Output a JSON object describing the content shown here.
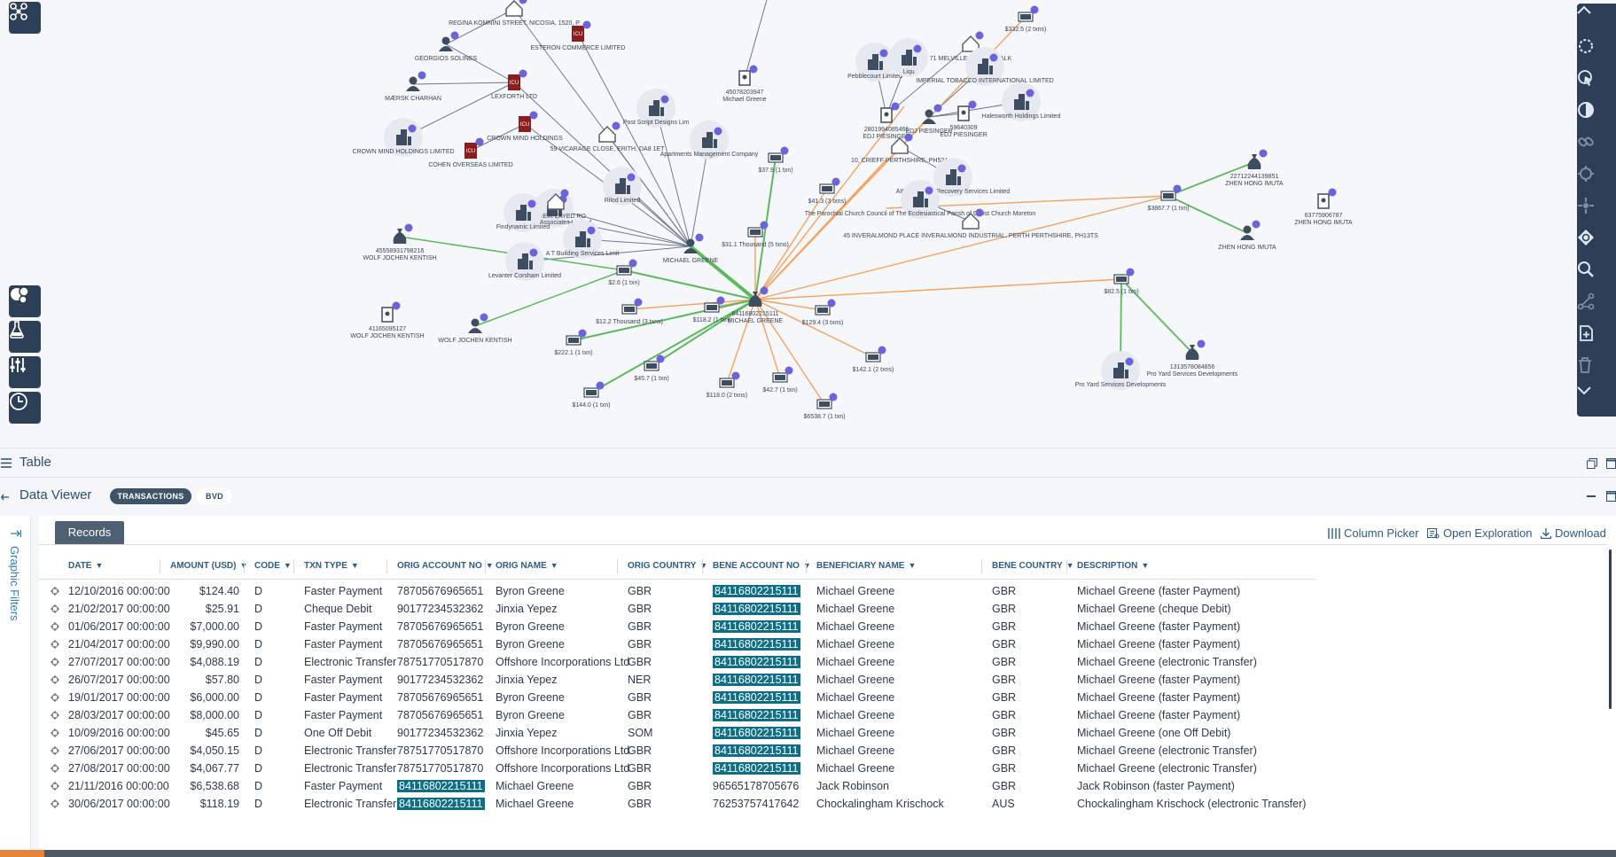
{
  "graph": {
    "nodes": [
      {
        "label": "REGINA KOMNINI STREET, NICOSIA, 1520, P",
        "kind": "house"
      },
      {
        "label": "GEORGIOS SOLINES",
        "kind": "person"
      },
      {
        "label": "ESTERON COMMERCE LIMITED",
        "kind": "icu"
      },
      {
        "label": "MÆRSK CHARHAN",
        "kind": "person"
      },
      {
        "label": "LEXFORTH LTD",
        "kind": "icu"
      },
      {
        "label": "CROWN MIND HOLDINGS",
        "kind": "icu"
      },
      {
        "label": "CROWN MIND HOLDINGS LIMITED",
        "kind": "company"
      },
      {
        "label": "COHEN OVERSEAS LIMITED",
        "kind": "icu"
      },
      {
        "label": "59 VICARAGE CLOSE, ERITH, DA8 1ET",
        "kind": "house"
      },
      {
        "label": "Post Script Designs Lim",
        "kind": "company"
      },
      {
        "label": "45078203947\nMichael Greene",
        "kind": "account"
      },
      {
        "label": "Apartments Management Company",
        "kind": "company"
      },
      {
        "label": "Pamper Associates Limited",
        "kind": "company"
      },
      {
        "label": "94 SHEIK ZAYED RO",
        "kind": "house"
      },
      {
        "label": "Rilod Limited",
        "kind": "company"
      },
      {
        "label": "Findynamic Limited",
        "kind": "company"
      },
      {
        "label": "A T Building Services Limit",
        "kind": "company"
      },
      {
        "label": "Levanter Corsham Limited",
        "kind": "company"
      },
      {
        "label": "45558931798216\nWOLF JOCHEN KENTISH",
        "kind": "bag"
      },
      {
        "label": "41165095127\nWOLF JOCHEN KENTISH",
        "kind": "account"
      },
      {
        "label": "WOLF JOCHEN KENTISH",
        "kind": "person"
      },
      {
        "label": "MICHAEL GREENE",
        "kind": "person"
      },
      {
        "label": "84116802215111\nMICHAEL GREENE",
        "kind": "bag"
      },
      {
        "label": "Pebblecourt Limited",
        "kind": "company"
      },
      {
        "label": "Liqu",
        "kind": "company"
      },
      {
        "label": "71 MELVILLE STREET, FALK",
        "kind": "house"
      },
      {
        "label": "IMPERIAL TOBACCO INTERNATIONAL LIMITED",
        "kind": "company"
      },
      {
        "label": "Halesworth Holdings Limited",
        "kind": "company"
      },
      {
        "label": "2801994085466\nEDJ PIESINGER",
        "kind": "account"
      },
      {
        "label": "EDJ PIESINGER",
        "kind": "person"
      },
      {
        "label": "59640309\nEDJ PIESINGER",
        "kind": "account"
      },
      {
        "label": "10, CRIEFF PERTHSHIRE, PH52A",
        "kind": "house"
      },
      {
        "label": "Athabasca Oil Recovery Services Limited",
        "kind": "company"
      },
      {
        "label": "The Parochial Church Council of The Ecclesiastical Parish of Christ Church Moreton",
        "kind": "company"
      },
      {
        "label": "45 INVERALMOND PLACE INVERALMOND INDUSTRIAL, PERTH PERTHSHIRE, PH13TS",
        "kind": "house"
      },
      {
        "label": "22712244139851\nZHEN HONG IMUTA",
        "kind": "bag"
      },
      {
        "label": "63775906787\nZHEN HONG IMUTA",
        "kind": "account"
      },
      {
        "label": "ZHEN HONG IMUTA",
        "kind": "person"
      },
      {
        "label": "1313578084856\nPro Yard Services Developments",
        "kind": "bag"
      },
      {
        "label": "Pro Yard Services Developments",
        "kind": "company"
      }
    ],
    "edge_labels": [
      "$332.5 (2 txns)",
      "$37.9 (1 txn)",
      "$41.3 (3 txns)",
      "$31.1 Thousand (5 txns)",
      "$3867.7 (1 txn)",
      "$82.5 (1 txn)",
      "$2.6 (1 txn)",
      "$12.2 Thousand (3 txns)",
      "$118.2 (1 txn)",
      "$129.4 (3 txns)",
      "$222.1 (1 txn)",
      "$144.0 (1 txn)",
      "$45.7 (1 txn)",
      "$118.0 (2 txns)",
      "$42.7 (1 txn)",
      "$142.1 (2 txns)",
      "$6538.7 (1 txn)"
    ]
  },
  "left_tools": [
    "network-logo-icon",
    "cluster-icon",
    "flask-icon",
    "sliders-icon",
    "clock-icon"
  ],
  "right_tools": [
    "collapse-up-icon",
    "lasso-select-icon",
    "pointer-select-icon",
    "contrast-icon",
    "link-icon",
    "focus-icon",
    "center-icon",
    "sync-icon",
    "search-icon",
    "path-icon",
    "add-page-icon",
    "trash-icon",
    "expand-down-icon"
  ],
  "table_panel": {
    "title": "Table"
  },
  "data_viewer": {
    "title": "Data Viewer",
    "tabs": [
      "TRANSACTIONS",
      "BVD"
    ],
    "active_tab": "TRANSACTIONS"
  },
  "side_panel": {
    "label": "Graphic Filters"
  },
  "records_tab": "Records",
  "toolbar": {
    "column_picker": "Column Picker",
    "open_exploration": "Open Exploration",
    "download": "Download"
  },
  "columns": [
    "DATE",
    "AMOUNT (USD)",
    "CODE",
    "TXN TYPE",
    "ORIG ACCOUNT NO",
    "ORIG NAME",
    "ORIG COUNTRY",
    "BENE ACCOUNT NO",
    "BENEFICIARY NAME",
    "BENE COUNTRY",
    "DESCRIPTION"
  ],
  "rows": [
    [
      "12/10/2016 00:00:00",
      "$124.40",
      "D",
      "Faster Payment",
      "78705676965651",
      "Byron Greene",
      "GBR",
      "84116802215111",
      "Michael Greene",
      "GBR",
      "Michael Greene (faster Payment)"
    ],
    [
      "21/02/2017 00:00:00",
      "$25.91",
      "D",
      "Cheque Debit",
      "90177234532362",
      "Jinxia Yepez",
      "GBR",
      "84116802215111",
      "Michael Greene",
      "GBR",
      "Michael Greene (cheque Debit)"
    ],
    [
      "01/06/2017 00:00:00",
      "$7,000.00",
      "D",
      "Faster Payment",
      "78705676965651",
      "Byron Greene",
      "GBR",
      "84116802215111",
      "Michael Greene",
      "GBR",
      "Michael Greene (faster Payment)"
    ],
    [
      "21/04/2017 00:00:00",
      "$9,990.00",
      "D",
      "Faster Payment",
      "78705676965651",
      "Byron Greene",
      "GBR",
      "84116802215111",
      "Michael Greene",
      "GBR",
      "Michael Greene (faster Payment)"
    ],
    [
      "27/07/2017 00:00:00",
      "$4,088.19",
      "D",
      "Electronic Transfer",
      "78751770517870",
      "Offshore Incorporations Ltd",
      "GBR",
      "84116802215111",
      "Michael Greene",
      "GBR",
      "Michael Greene (electronic Transfer)"
    ],
    [
      "26/07/2017 00:00:00",
      "$57.80",
      "D",
      "Faster Payment",
      "90177234532362",
      "Jinxia Yepez",
      "NER",
      "84116802215111",
      "Michael Greene",
      "GBR",
      "Michael Greene (faster Payment)"
    ],
    [
      "19/01/2017 00:00:00",
      "$6,000.00",
      "D",
      "Faster Payment",
      "78705676965651",
      "Byron Greene",
      "GBR",
      "84116802215111",
      "Michael Greene",
      "GBR",
      "Michael Greene (faster Payment)"
    ],
    [
      "28/03/2017 00:00:00",
      "$8,000.00",
      "D",
      "Faster Payment",
      "78705676965651",
      "Byron Greene",
      "GBR",
      "84116802215111",
      "Michael Greene",
      "GBR",
      "Michael Greene (faster Payment)"
    ],
    [
      "10/09/2016 00:00:00",
      "$45.65",
      "D",
      "One Off Debit",
      "90177234532362",
      "Jinxia Yepez",
      "SOM",
      "84116802215111",
      "Michael Greene",
      "GBR",
      "Michael Greene (one Off Debit)"
    ],
    [
      "27/06/2017 00:00:00",
      "$4,050.15",
      "D",
      "Electronic Transfer",
      "78751770517870",
      "Offshore Incorporations Ltd",
      "GBR",
      "84116802215111",
      "Michael Greene",
      "GBR",
      "Michael Greene (electronic Transfer)"
    ],
    [
      "27/08/2017 00:00:00",
      "$4,067.77",
      "D",
      "Electronic Transfer",
      "78751770517870",
      "Offshore Incorporations Ltd",
      "GBR",
      "84116802215111",
      "Michael Greene",
      "GBR",
      "Michael Greene (electronic Transfer)"
    ],
    [
      "21/11/2016 00:00:00",
      "$6,538.68",
      "D",
      "Faster Payment",
      "84116802215111",
      "Michael Greene",
      "GBR",
      "96565178705676",
      "Jack Robinson",
      "GBR",
      "Jack Robinson (faster Payment)"
    ],
    [
      "30/06/2017 00:00:00",
      "$118.19",
      "D",
      "Electronic Transfer",
      "84116802215111",
      "Michael Greene",
      "GBR",
      "76253757417642",
      "Chockalingham Krischock",
      "AUS",
      "Chockalingham Krischock (electronic Transfer)"
    ]
  ],
  "highlight_value": "84116802215111",
  "colors": {
    "toolbar": "#2c3f57",
    "highlight": "#0f6e87",
    "edge_orange": "#f5a25d",
    "edge_green": "#5cb85c",
    "edge_gray": "#6c7a8a",
    "badge": "#6b63d9"
  }
}
